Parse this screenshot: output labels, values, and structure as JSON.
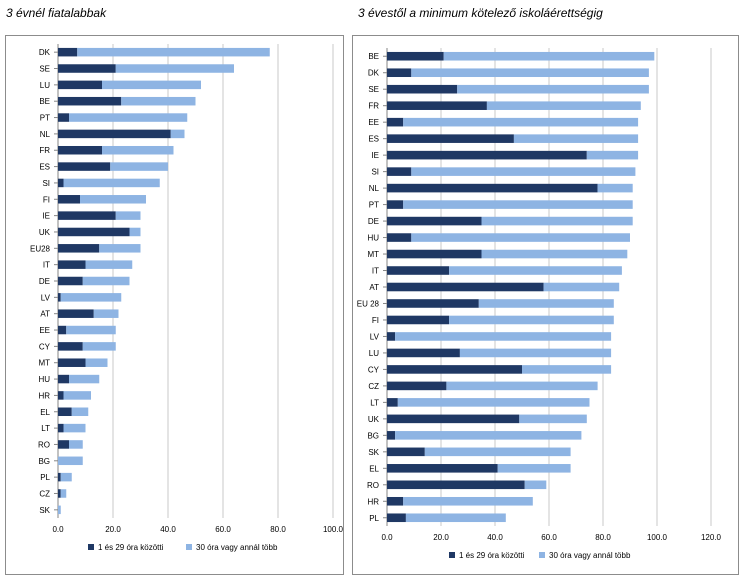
{
  "charts": {
    "left_title": "3 évnél fiatalabbak",
    "right_title": "3 évestől a minimum kötelező iskoláérettségig"
  },
  "colors": {
    "dark": "#1f3864",
    "light": "#8eb4e3",
    "grid": "#c8c8c8"
  },
  "chart_data": [
    {
      "type": "bar",
      "orientation": "horizontal",
      "stacked": true,
      "title": "3 évnél fiatalabbak",
      "categories": [
        "DK",
        "SE",
        "LU",
        "BE",
        "PT",
        "NL",
        "FR",
        "ES",
        "SI",
        "FI",
        "IE",
        "UK",
        "EU28",
        "IT",
        "DE",
        "LV",
        "AT",
        "EE",
        "CY",
        "MT",
        "HU",
        "HR",
        "EL",
        "LT",
        "RO",
        "BG",
        "PL",
        "CZ",
        "SK"
      ],
      "series": [
        {
          "name": "1 és 29 óra közötti",
          "values": [
            7,
            21,
            16,
            23,
            4,
            41,
            16,
            19,
            2,
            8,
            21,
            26,
            15,
            10,
            9,
            1,
            13,
            3,
            9,
            10,
            4,
            2,
            5,
            2,
            4,
            0,
            1,
            1,
            0
          ]
        },
        {
          "name": "30 óra vagy annál több",
          "values": [
            70,
            43,
            36,
            27,
            43,
            5,
            26,
            21,
            35,
            24,
            9,
            4,
            15,
            17,
            17,
            22,
            9,
            18,
            12,
            8,
            11,
            10,
            6,
            8,
            5,
            9,
            4,
            2,
            1
          ]
        }
      ],
      "xlim": [
        0,
        100
      ],
      "xticks": [
        "0.0",
        "20.0",
        "40.0",
        "60.0",
        "80.0",
        "100.0"
      ],
      "legend_position": "bottom"
    },
    {
      "type": "bar",
      "orientation": "horizontal",
      "stacked": true,
      "title": "3 évestől a minimum kötelező iskoláérettségig",
      "categories": [
        "BE",
        "DK",
        "SE",
        "FR",
        "EE",
        "ES",
        "IE",
        "SI",
        "NL",
        "PT",
        "DE",
        "HU",
        "MT",
        "IT",
        "AT",
        "EU 28",
        "FI",
        "LV",
        "LU",
        "CY",
        "CZ",
        "LT",
        "UK",
        "BG",
        "SK",
        "EL",
        "RO",
        "HR",
        "PL"
      ],
      "series": [
        {
          "name": "1 és 29 óra közötti",
          "values": [
            21,
            9,
            26,
            37,
            6,
            47,
            74,
            9,
            78,
            6,
            35,
            9,
            35,
            23,
            58,
            34,
            23,
            3,
            27,
            50,
            22,
            4,
            49,
            3,
            14,
            41,
            51,
            6,
            7
          ]
        },
        {
          "name": "30 óra vagy annál több",
          "values": [
            78,
            88,
            71,
            57,
            87,
            46,
            19,
            83,
            13,
            85,
            56,
            81,
            54,
            64,
            28,
            50,
            61,
            80,
            56,
            33,
            56,
            71,
            25,
            69,
            54,
            27,
            8,
            48,
            37
          ]
        }
      ],
      "xlim": [
        0,
        120
      ],
      "xticks": [
        "0.0",
        "20.0",
        "40.0",
        "60.0",
        "80.0",
        "100.0",
        "120.0"
      ],
      "legend_position": "bottom"
    }
  ]
}
